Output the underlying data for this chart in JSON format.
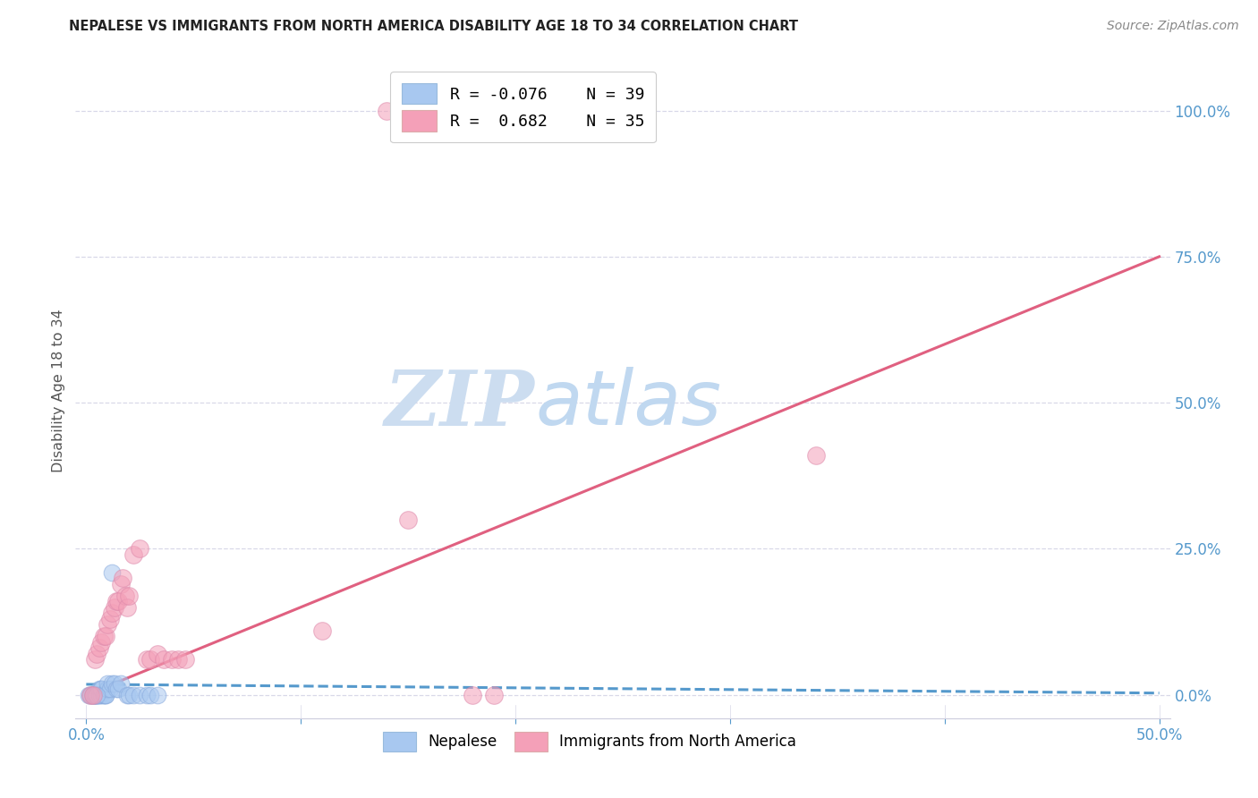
{
  "title": "NEPALESE VS IMMIGRANTS FROM NORTH AMERICA DISABILITY AGE 18 TO 34 CORRELATION CHART",
  "source": "Source: ZipAtlas.com",
  "xlabel_ticks_labels": [
    "0.0%",
    "",
    "",
    "",
    "",
    "50.0%"
  ],
  "xlabel_vals": [
    0.0,
    0.1,
    0.2,
    0.3,
    0.4,
    0.5
  ],
  "ylabel": "Disability Age 18 to 34",
  "ylabel_ticks_right": [
    "0.0%",
    "25.0%",
    "50.0%",
    "75.0%",
    "100.0%"
  ],
  "ylabel_vals_right": [
    0.0,
    0.25,
    0.5,
    0.75,
    1.0
  ],
  "xlim": [
    -0.005,
    0.505
  ],
  "ylim": [
    -0.04,
    1.08
  ],
  "legend_r1": "R = -0.076",
  "legend_n1": "N = 39",
  "legend_r2": "R =  0.682",
  "legend_n2": "N = 35",
  "color_blue": "#a8c8f0",
  "color_pink": "#f4a0b8",
  "trendline_blue_color": "#5599cc",
  "trendline_pink_color": "#e06080",
  "watermark_zip_color": "#c8dff5",
  "watermark_atlas_color": "#c8dff5",
  "blue_points": [
    [
      0.001,
      0.0
    ],
    [
      0.002,
      0.0
    ],
    [
      0.002,
      0.0
    ],
    [
      0.003,
      0.0
    ],
    [
      0.003,
      0.0
    ],
    [
      0.003,
      0.0
    ],
    [
      0.004,
      0.0
    ],
    [
      0.004,
      0.0
    ],
    [
      0.004,
      0.0
    ],
    [
      0.005,
      0.0
    ],
    [
      0.005,
      0.0
    ],
    [
      0.005,
      0.0
    ],
    [
      0.006,
      0.0
    ],
    [
      0.006,
      0.0
    ],
    [
      0.006,
      0.01
    ],
    [
      0.007,
      0.0
    ],
    [
      0.007,
      0.01
    ],
    [
      0.007,
      0.01
    ],
    [
      0.008,
      0.0
    ],
    [
      0.008,
      0.0
    ],
    [
      0.009,
      0.0
    ],
    [
      0.009,
      0.0
    ],
    [
      0.01,
      0.01
    ],
    [
      0.01,
      0.02
    ],
    [
      0.011,
      0.01
    ],
    [
      0.012,
      0.02
    ],
    [
      0.013,
      0.02
    ],
    [
      0.014,
      0.01
    ],
    [
      0.015,
      0.01
    ],
    [
      0.016,
      0.02
    ],
    [
      0.019,
      0.0
    ],
    [
      0.02,
      0.0
    ],
    [
      0.022,
      0.0
    ],
    [
      0.025,
      0.0
    ],
    [
      0.028,
      0.0
    ],
    [
      0.03,
      0.0
    ],
    [
      0.033,
      0.0
    ],
    [
      0.012,
      0.21
    ],
    [
      0.005,
      0.0
    ]
  ],
  "pink_points": [
    [
      0.002,
      0.0
    ],
    [
      0.003,
      0.0
    ],
    [
      0.004,
      0.06
    ],
    [
      0.005,
      0.07
    ],
    [
      0.006,
      0.08
    ],
    [
      0.007,
      0.09
    ],
    [
      0.008,
      0.1
    ],
    [
      0.009,
      0.1
    ],
    [
      0.01,
      0.12
    ],
    [
      0.011,
      0.13
    ],
    [
      0.012,
      0.14
    ],
    [
      0.013,
      0.15
    ],
    [
      0.014,
      0.16
    ],
    [
      0.015,
      0.16
    ],
    [
      0.016,
      0.19
    ],
    [
      0.017,
      0.2
    ],
    [
      0.018,
      0.17
    ],
    [
      0.019,
      0.15
    ],
    [
      0.02,
      0.17
    ],
    [
      0.022,
      0.24
    ],
    [
      0.025,
      0.25
    ],
    [
      0.028,
      0.06
    ],
    [
      0.03,
      0.06
    ],
    [
      0.033,
      0.07
    ],
    [
      0.036,
      0.06
    ],
    [
      0.04,
      0.06
    ],
    [
      0.043,
      0.06
    ],
    [
      0.046,
      0.06
    ],
    [
      0.11,
      0.11
    ],
    [
      0.14,
      1.0
    ],
    [
      0.26,
      1.0
    ],
    [
      0.34,
      0.41
    ],
    [
      0.15,
      0.3
    ],
    [
      0.18,
      0.0
    ],
    [
      0.19,
      0.0
    ]
  ],
  "blue_trendline_x": [
    0.0,
    0.5
  ],
  "blue_trendline_y": [
    0.018,
    0.003
  ],
  "pink_trendline_x": [
    0.0,
    0.5
  ],
  "pink_trendline_y": [
    0.0,
    0.75
  ],
  "grid_color": "#d8d8e8",
  "grid_linestyle": "--",
  "background_color": "#ffffff",
  "title_fontsize": 10.5,
  "source_fontsize": 10,
  "tick_color": "#5599cc",
  "ylabel_color": "#555555"
}
